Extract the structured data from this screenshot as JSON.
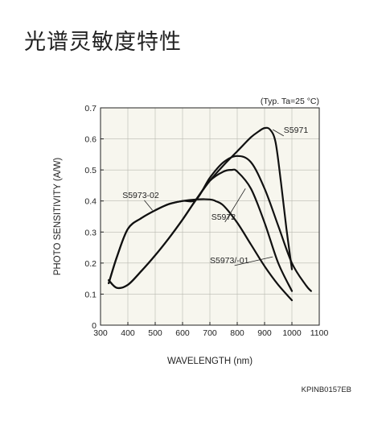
{
  "page": {
    "title": "光谱灵敏度特性"
  },
  "chart_data": {
    "type": "line",
    "title": "",
    "condition": "(Typ. Ta=25 °C)",
    "xlabel": "WAVELENGTH (nm)",
    "ylabel": "PHOTO SENSITIVITY (A/W)",
    "xlim": [
      300,
      1100
    ],
    "ylim": [
      0,
      0.7
    ],
    "xticks": [
      "300",
      "400",
      "500",
      "600",
      "700",
      "800",
      "900",
      "1000",
      "1100"
    ],
    "yticks": [
      "0",
      "0.1",
      "0.2",
      "0.3",
      "0.4",
      "0.5",
      "0.6",
      "0.7"
    ],
    "grid": true,
    "figure_code": "KPINB0157EB",
    "series": [
      {
        "name": "S5971",
        "x": [
          330,
          360,
          400,
          450,
          500,
          550,
          600,
          650,
          700,
          750,
          800,
          850,
          880,
          900,
          920,
          940,
          960,
          980,
          1000
        ],
        "y": [
          0.145,
          0.12,
          0.13,
          0.175,
          0.225,
          0.28,
          0.34,
          0.405,
          0.465,
          0.515,
          0.56,
          0.605,
          0.625,
          0.635,
          0.63,
          0.59,
          0.46,
          0.31,
          0.18
        ]
      },
      {
        "name": "S5973-02",
        "x": [
          330,
          360,
          400,
          450,
          500,
          550,
          600,
          650,
          700,
          750,
          800,
          850,
          900,
          950,
          1000,
          1050,
          1070
        ],
        "y": [
          0.135,
          0.22,
          0.31,
          0.345,
          0.37,
          0.39,
          0.4,
          0.405,
          0.475,
          0.525,
          0.545,
          0.525,
          0.44,
          0.32,
          0.2,
          0.13,
          0.11
        ]
      },
      {
        "name": "S5972",
        "x": [
          330,
          360,
          400,
          450,
          500,
          550,
          600,
          650,
          700,
          750,
          780,
          800,
          850,
          900,
          950,
          1000
        ],
        "y": [
          0.145,
          0.12,
          0.13,
          0.175,
          0.225,
          0.28,
          0.34,
          0.405,
          0.465,
          0.495,
          0.5,
          0.495,
          0.44,
          0.33,
          0.2,
          0.11
        ]
      },
      {
        "name": "S5973/-01",
        "x": [
          330,
          360,
          400,
          450,
          500,
          550,
          600,
          650,
          700,
          720,
          750,
          800,
          850,
          900,
          950,
          1000
        ],
        "y": [
          0.135,
          0.22,
          0.31,
          0.345,
          0.37,
          0.39,
          0.4,
          0.405,
          0.405,
          0.4,
          0.385,
          0.33,
          0.26,
          0.19,
          0.13,
          0.08
        ]
      }
    ],
    "annotations": [
      {
        "label": "S5971",
        "x": 970,
        "y": 0.62,
        "to_x": 930,
        "to_y": 0.63,
        "anchor": "end-right"
      },
      {
        "label": "S5973-02",
        "x": 380,
        "y": 0.41,
        "to_x": 490,
        "to_y": 0.37
      },
      {
        "label": "S5972",
        "x": 705,
        "y": 0.34,
        "to_x": 830,
        "to_y": 0.44
      },
      {
        "label": "S5973/-01",
        "x": 700,
        "y": 0.2,
        "to_x": 930,
        "to_y": 0.22
      }
    ]
  }
}
